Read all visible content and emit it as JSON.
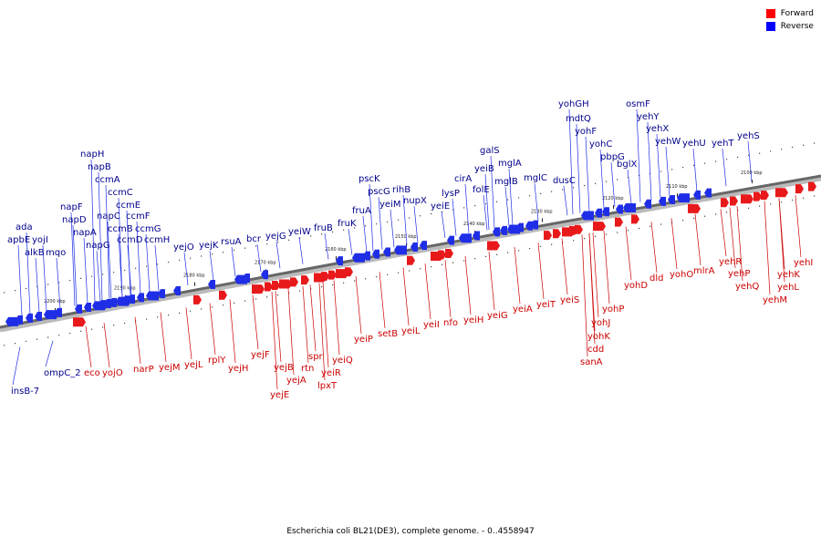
{
  "legend": {
    "items": [
      {
        "label": "Forward",
        "color": "#ff0000"
      },
      {
        "label": "Reverse",
        "color": "#0000ff"
      }
    ]
  },
  "caption": "Escherichia coli BL21(DE3), complete genome. - 0..4558947",
  "colors": {
    "forward": "#e8191b",
    "reverse": "#1f2ee6",
    "forward_text": "#cc0000",
    "reverse_text": "#00008b",
    "backbone": "#666666"
  },
  "scale_labels": [
    "2100 kbp",
    "2110 kbp",
    "2120 kbp",
    "2130 kbp",
    "2140 kbp",
    "2150 kbp",
    "2160 kbp",
    "2170 kbp",
    "2180 kbp",
    "2190 kbp",
    "2200 kbp"
  ],
  "forward_genes": [
    "eco",
    "yojO",
    "narP",
    "yejM",
    "yejL",
    "rplY",
    "yejH",
    "yejF",
    "yejE",
    "yejB",
    "yejA",
    "rtn",
    "spr",
    "lpxT",
    "yeiR",
    "yeiQ",
    "yeiP",
    "setB",
    "yeiL",
    "yeiI",
    "nfo",
    "yeiH",
    "yeiG",
    "yeiA",
    "yeiT",
    "yeiS",
    "sanA",
    "cdd",
    "yohK",
    "yohJ",
    "yohP",
    "yohD",
    "dld",
    "yohO",
    "mlrA",
    "yehR",
    "yehP",
    "yehQ",
    "yehM",
    "yehL",
    "yehK",
    "yehI"
  ],
  "reverse_genes": [
    "insB-7",
    "ompC_2",
    "ada",
    "apbE",
    "yojI",
    "alkB",
    "mqo",
    "napF",
    "napD",
    "napA",
    "napG",
    "napH",
    "napB",
    "ccmA",
    "ccmC",
    "ccmE",
    "napC",
    "ccmB",
    "ccmF",
    "ccmD",
    "ccmG",
    "ccmH",
    "yejO",
    "yejK",
    "rsuA",
    "bcr",
    "yejG",
    "yeiW",
    "fruB",
    "fruK",
    "fruA",
    "pscK",
    "pscG",
    "yeiM",
    "rihB",
    "nupX",
    "yeiE",
    "lysP",
    "cirA",
    "folE",
    "yeiB",
    "galS",
    "mglA",
    "mglB",
    "mglC",
    "dusC",
    "yohGH",
    "mdtQ",
    "yohF",
    "yohC",
    "pbpG",
    "bglX",
    "osmF",
    "yehY",
    "yehX",
    "yehW",
    "yehU",
    "yehT",
    "yehS"
  ]
}
